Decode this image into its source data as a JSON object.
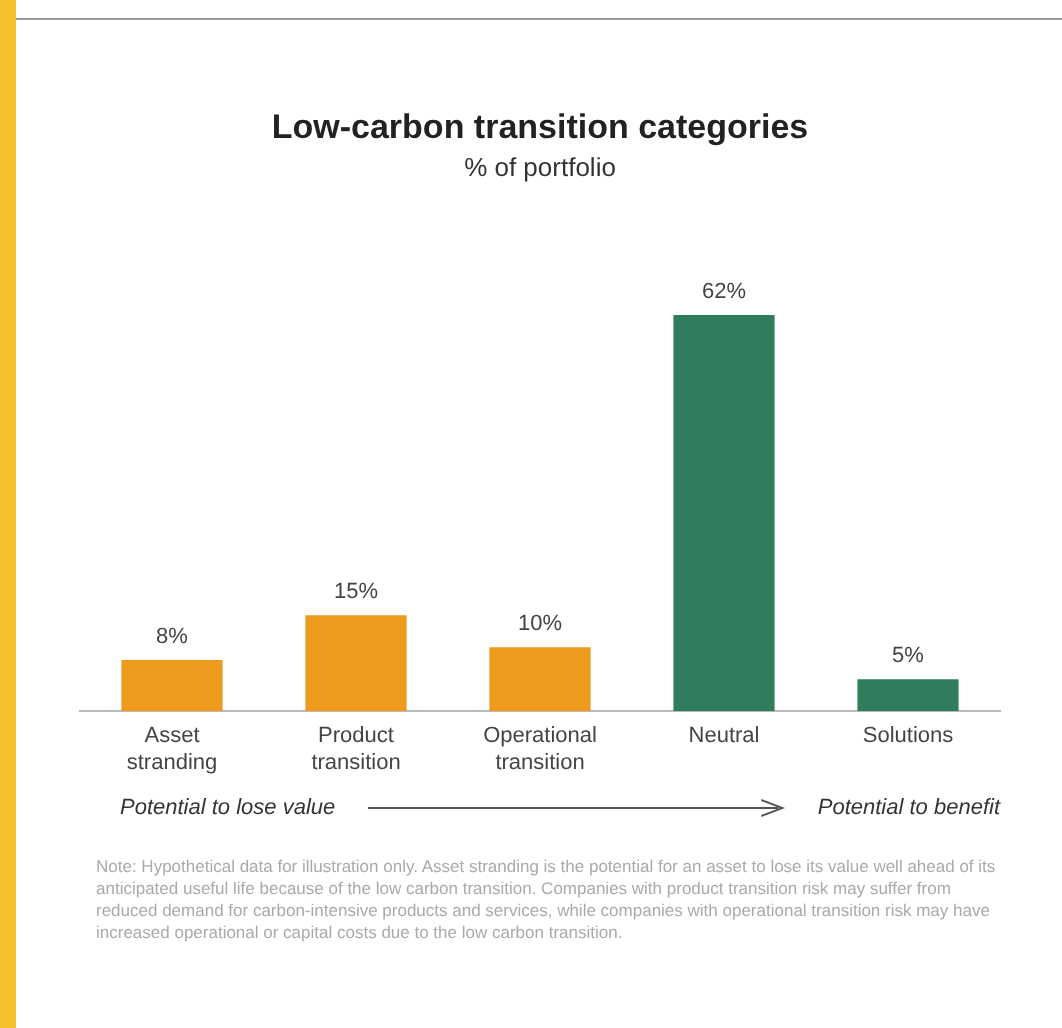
{
  "chart_data": {
    "type": "bar",
    "title": "Low-carbon transition categories",
    "subtitle": "% of portfolio",
    "categories": [
      "Asset stranding",
      "Product transition",
      "Operational transition",
      "Neutral",
      "Solutions"
    ],
    "values": [
      8,
      15,
      10,
      62,
      5
    ],
    "value_labels": [
      "8%",
      "15%",
      "10%",
      "62%",
      "5%"
    ],
    "colors": [
      "#ee9a1e",
      "#ee9a1e",
      "#ee9a1e",
      "#2f7d5c",
      "#2f7d5c"
    ],
    "grid": false,
    "legend": false,
    "tick_labels": "x",
    "annotations": [
      "Potential to lose value",
      "Potential to benefit",
      "Note: Hypothetical data for illustration only. Asset stranding is the potential for an asset to lose its value well ahead of its anticipated useful life because of the low carbon transition. Companies with product transition risk may suffer from reduced demand for carbon-intensive products and services, while companies with operational transition risk may have increased operational or capital costs due to the low carbon transition."
    ]
  }
}
